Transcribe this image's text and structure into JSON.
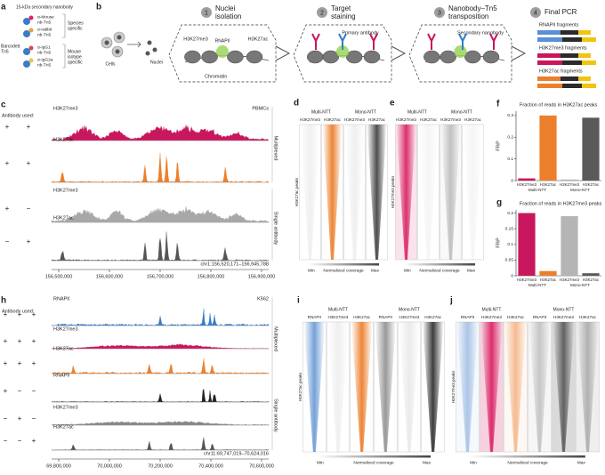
{
  "panel_labels": [
    "a",
    "b",
    "c",
    "d",
    "e",
    "f",
    "g",
    "h",
    "i",
    "j"
  ],
  "a": {
    "nanobody": "15-kDa secondary nanobody",
    "tn5": [
      "Barcoded",
      "Tn5"
    ],
    "items": [
      [
        "α-Mouse",
        "nb-Tn5"
      ],
      [
        "α-rabbit",
        "nb-Tn5"
      ],
      [
        "α-IgG1",
        "nb-Tn5"
      ],
      [
        "α-IgG2a",
        "nb-Tn5"
      ]
    ],
    "groups": [
      [
        "Species",
        "specific"
      ],
      [
        "Mouse",
        "isotype",
        "specific"
      ]
    ]
  },
  "b": {
    "steps": [
      {
        "num": "1",
        "label": [
          "Nuclei",
          "isolation"
        ]
      },
      {
        "num": "2",
        "label": [
          "Target",
          "staining"
        ]
      },
      {
        "num": "3",
        "label": [
          "Nanobody–Tn5",
          "transposition"
        ]
      },
      {
        "num": "4",
        "label": [
          "Final PCR"
        ]
      }
    ],
    "labels": {
      "cells": "Cells",
      "nuclei": "Nuclei",
      "chromatin": "Chromatin",
      "me3": "H3K27me3",
      "ac": "H3K27ac",
      "rnapii": "RNAPII",
      "primary": "Primary antibody",
      "secondary": "Secondary nanobody"
    },
    "fragments": [
      "RNAPII fragments",
      "H3K27me3 fragments",
      "H3K27ac fragments"
    ]
  },
  "c": {
    "antibody_used": "Antibody used:",
    "signs": [
      [
        "+",
        "+"
      ],
      [
        "+",
        "+"
      ],
      [
        "+",
        "−"
      ],
      [
        "−",
        "+"
      ]
    ],
    "tracks": [
      "H3K27me3",
      "H3K27ac",
      "H3K27me3",
      "H3K27ac"
    ],
    "cell": "PBMCs",
    "groups": [
      "Multiplexed",
      "Single antibody"
    ],
    "locus": "chr1:156,520,171–156,945,788",
    "xticks": [
      "156,500,000",
      "156,600,000",
      "156,700,000",
      "156,800,000",
      "156,900,000"
    ]
  },
  "d": {
    "groups": [
      "Multi-NTT",
      "Mono-NTT"
    ],
    "columns": [
      "H3K27me3",
      "H3K27ac",
      "H3K27me3",
      "H3K27ac"
    ],
    "row_label": "H3K27ac peaks",
    "scale": [
      "Min",
      "Normalized coverage",
      "Max"
    ]
  },
  "e": {
    "groups": [
      "Multi-NTT",
      "Mono-NTT"
    ],
    "columns": [
      "H3K27me3",
      "H3K27ac",
      "H3K27me3",
      "H3K27ac"
    ],
    "row_label": "H3K27me3 peaks",
    "scale": [
      "Min",
      "Normalized coverage",
      "Max"
    ]
  },
  "f": {
    "type": "bar",
    "title": "Fraction of reads in H3K27ac peaks",
    "ylabel": "FRiP",
    "categories": [
      "H3K27me3",
      "H3K27ac",
      "H3K27me3",
      "H3K27ac"
    ],
    "groups": [
      "Multi-NTT",
      "Mono-NTT"
    ],
    "values": [
      0.01,
      0.3,
      0.005,
      0.29
    ],
    "colors": [
      "#c8175d",
      "#ec7f2c",
      "#b5b5b5",
      "#5a5a5a"
    ],
    "ylim": [
      0,
      0.32
    ],
    "yticks": [
      0,
      0.1,
      0.2,
      0.3
    ]
  },
  "g": {
    "type": "bar",
    "title": "Fraction of reads in H3K27me3 peaks",
    "ylabel": "FRiP",
    "categories": [
      "H3K27me3",
      "H3K27ac",
      "H3K27me3",
      "H3K27ac"
    ],
    "groups": [
      "Multi-NTT",
      "Mono-NTT"
    ],
    "values": [
      0.2,
      0.015,
      0.19,
      0.008
    ],
    "colors": [
      "#c8175d",
      "#ec7f2c",
      "#b5b5b5",
      "#5a5a5a"
    ],
    "ylim": [
      0,
      0.21
    ],
    "yticks": [
      0,
      0.05,
      0.1,
      0.15,
      0.2
    ]
  },
  "h": {
    "antibody_used": "Antibody used:",
    "signs": [
      [
        "+",
        "+",
        "+"
      ],
      [
        "+",
        "+",
        "+"
      ],
      [
        "+",
        "+",
        "+"
      ],
      [
        "+",
        "−",
        "−"
      ],
      [
        "−",
        "+",
        "−"
      ],
      [
        "−",
        "−",
        "+"
      ]
    ],
    "tracks": [
      "RNAPII",
      "H3K27me3",
      "H3K27ac",
      "RNAPII",
      "H3K27me3",
      "H3K27ac"
    ],
    "cell": "K562",
    "groups": [
      "Multiplexed",
      "Single antibody"
    ],
    "locus": "chr11:69,747,019–70,624,016",
    "xticks": [
      "69,800,000",
      "70,000,000",
      "70,200,000",
      "70,400,000",
      "70,600,000"
    ]
  },
  "i": {
    "groups": [
      "Multi-NTT",
      "Mono-NTT"
    ],
    "columns": [
      "RNAPII",
      "H3K27me3",
      "H3K27ac",
      "RNAPII",
      "H3K27me3",
      "H3K27ac"
    ],
    "row_label": "H3K27ac peaks",
    "scale": [
      "Min",
      "Normalized coverage",
      "Max"
    ]
  },
  "j": {
    "groups": [
      "Multi-NTT",
      "Mono-NTT"
    ],
    "columns": [
      "RNAPII",
      "H3K27me3",
      "H3K27ac",
      "RNAPII",
      "H3K27me3",
      "H3K27ac"
    ],
    "row_label": "H3K27me3 peaks",
    "scale": [
      "Min",
      "Normalized coverage",
      "Max"
    ]
  }
}
